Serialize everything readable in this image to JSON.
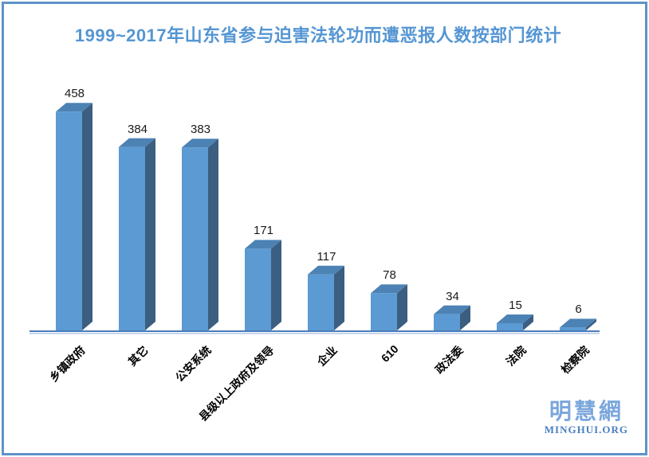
{
  "title": "1999~2017年山东省参与迫害法轮功而遭恶报人数按部门统计",
  "title_color": "#5596d3",
  "frame_border_color": "#6093c8",
  "chart_data": {
    "type": "bar",
    "style": "3d-column",
    "title": "1999~2017年山东省参与迫害法轮功而遭恶报人数按部门统计",
    "categories": [
      "乡镇政府",
      "其它",
      "公安系统",
      "县级以上政府及领导",
      "企业",
      "610",
      "政法委",
      "法院",
      "检察院"
    ],
    "values": [
      458,
      384,
      383,
      171,
      117,
      78,
      34,
      15,
      6
    ],
    "data_labels_shown": true,
    "xlabel": "",
    "ylabel": "",
    "ylim": [
      0,
      480
    ],
    "gridlines": false,
    "legend": "none",
    "bar_color_front": "#5b9ad2",
    "bar_color_top": "#4c82b4",
    "bar_color_side": "#3b5e81",
    "axis_line_color": "#4a7cba",
    "axis_shadow_color": "#b3c9e6"
  },
  "watermark": {
    "cjk": "明慧網",
    "latin": "MINGHUI.ORG"
  }
}
